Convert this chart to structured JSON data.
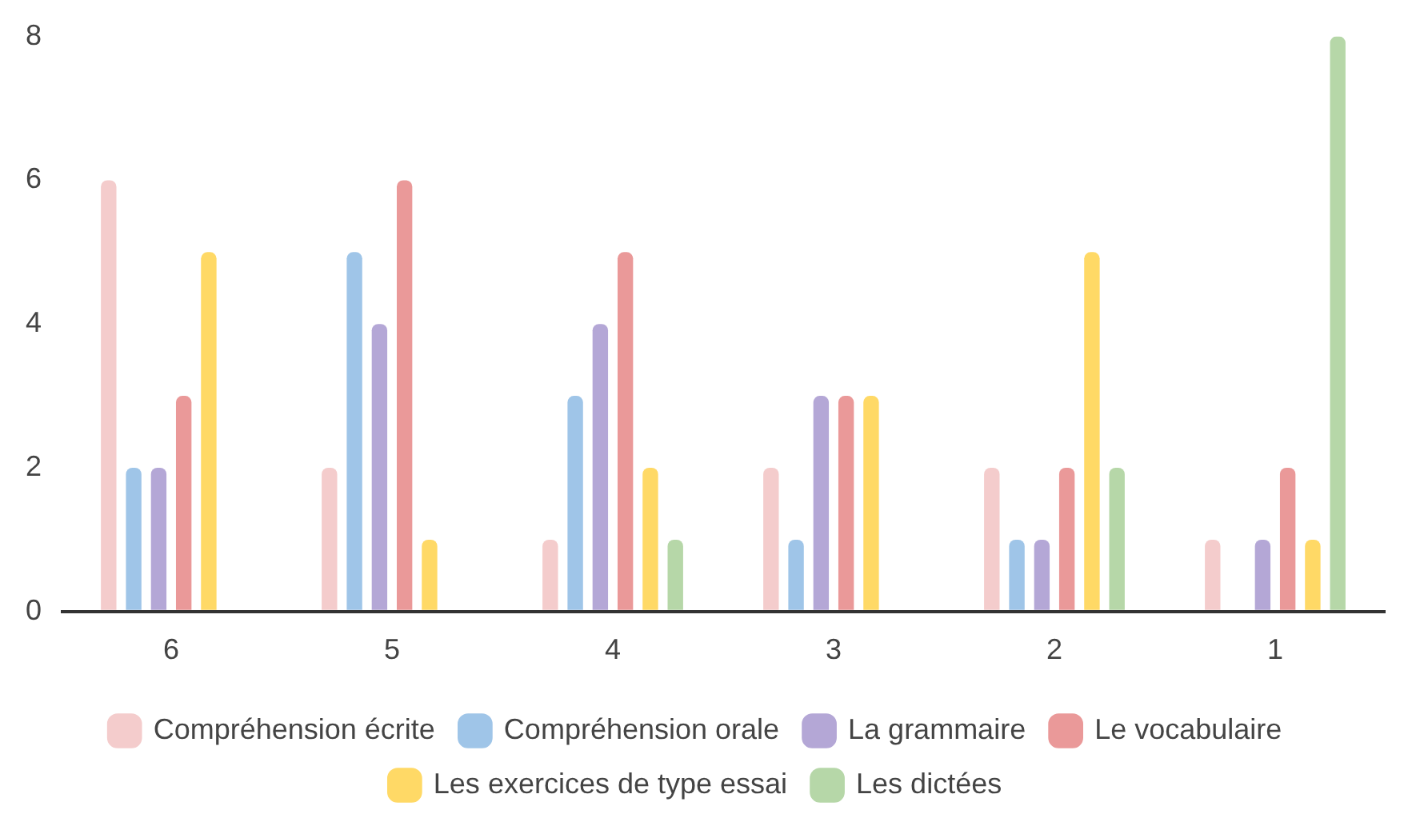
{
  "chart_data": {
    "type": "bar",
    "categories": [
      "6",
      "5",
      "4",
      "3",
      "2",
      "1"
    ],
    "series": [
      {
        "name": "Compréhension écrite",
        "color": "#f4cccc",
        "values": [
          6,
          2,
          1,
          2,
          2,
          1
        ]
      },
      {
        "name": "Compréhension orale",
        "color": "#9fc5e8",
        "values": [
          2,
          5,
          3,
          1,
          1,
          0
        ]
      },
      {
        "name": "La grammaire",
        "color": "#b4a7d6",
        "values": [
          2,
          4,
          4,
          3,
          1,
          1
        ]
      },
      {
        "name": "Le vocabulaire",
        "color": "#ea9999",
        "values": [
          3,
          6,
          5,
          3,
          2,
          2
        ]
      },
      {
        "name": "Les exercices de type essai",
        "color": "#ffd966",
        "values": [
          5,
          1,
          2,
          3,
          5,
          1
        ]
      },
      {
        "name": "Les dictées",
        "color": "#b6d7a8",
        "values": [
          0,
          0,
          1,
          0,
          2,
          8
        ]
      }
    ],
    "ylim": [
      0,
      8
    ],
    "yticks": [
      0,
      2,
      4,
      6,
      8
    ],
    "grid": false,
    "legend": "bottom"
  }
}
